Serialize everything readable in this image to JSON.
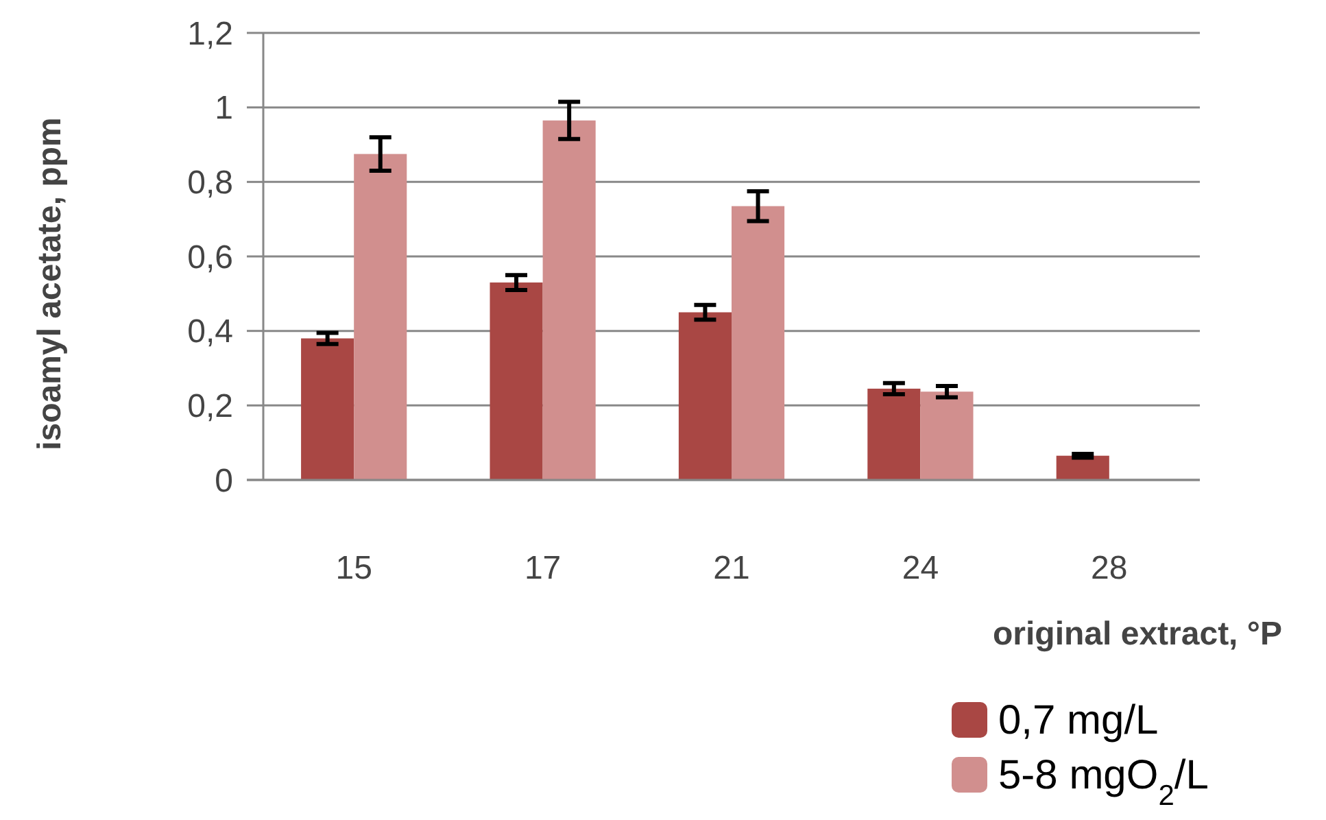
{
  "chart_data": {
    "type": "bar",
    "xlabel": "original extract, °P",
    "ylabel": "isoamyl acetate, ppm",
    "categories": [
      "15",
      "17",
      "21",
      "24",
      "28"
    ],
    "series": [
      {
        "name": "0,7 mg/L",
        "color": "#a94744",
        "values": [
          0.38,
          0.53,
          0.45,
          0.245,
          0.065
        ],
        "errors": [
          0.015,
          0.02,
          0.02,
          0.015,
          0.005
        ]
      },
      {
        "name": "5-8 mgO$_{2}$/L",
        "color": "#d18f8e",
        "values": [
          0.875,
          0.965,
          0.735,
          0.237,
          null
        ],
        "errors": [
          0.045,
          0.05,
          0.04,
          0.015,
          null
        ]
      }
    ],
    "ylim": [
      0,
      1.2
    ],
    "yticks": [
      {
        "value": 0,
        "label": "0"
      },
      {
        "value": 0.2,
        "label": "0,2"
      },
      {
        "value": 0.4,
        "label": "0,4"
      },
      {
        "value": 0.6,
        "label": "0,6"
      },
      {
        "value": 0.8,
        "label": "0,8"
      },
      {
        "value": 1,
        "label": "1"
      },
      {
        "value": 1.2,
        "label": "1,2"
      }
    ],
    "grid": "y",
    "legend": "bottom"
  }
}
